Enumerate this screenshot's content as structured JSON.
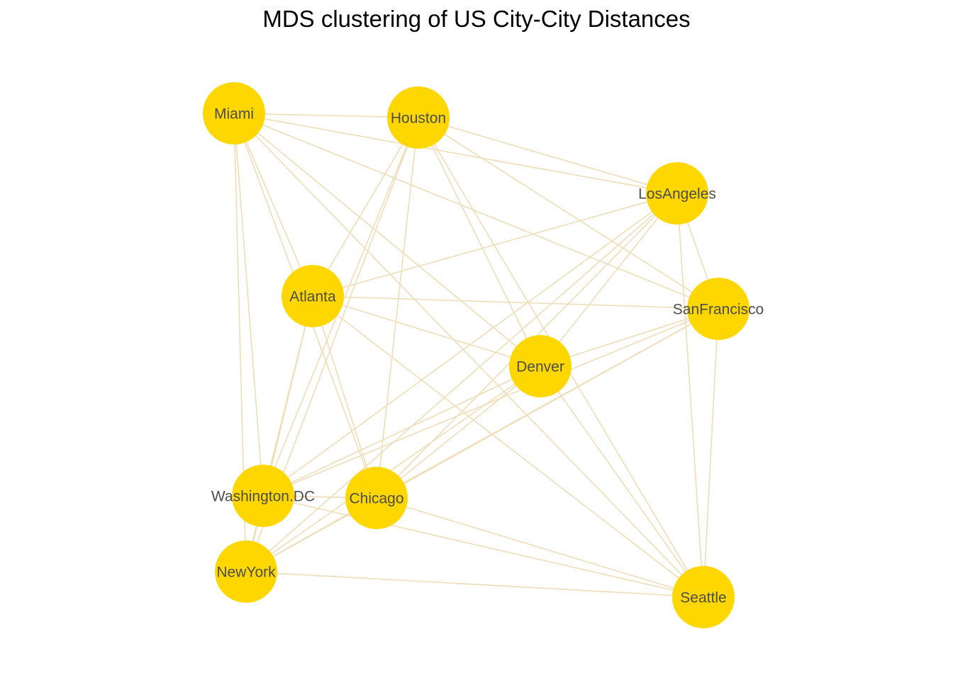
{
  "title": "MDS clustering of US City-City Distances",
  "colors": {
    "node_fill": "#FFD700",
    "edge_stroke": "#EEDDB8",
    "label_text": "#4D4D4D"
  },
  "nodes": [
    {
      "id": "Miami",
      "label": "Miami"
    },
    {
      "id": "Houston",
      "label": "Houston"
    },
    {
      "id": "LosAngeles",
      "label": "LosAngeles"
    },
    {
      "id": "Atlanta",
      "label": "Atlanta"
    },
    {
      "id": "SanFrancisco",
      "label": "SanFrancisco"
    },
    {
      "id": "Denver",
      "label": "Denver"
    },
    {
      "id": "Washington.DC",
      "label": "Washington.DC"
    },
    {
      "id": "Chicago",
      "label": "Chicago"
    },
    {
      "id": "NewYork",
      "label": "NewYork"
    },
    {
      "id": "Seattle",
      "label": "Seattle"
    }
  ],
  "edges": [
    [
      "Miami",
      "Houston"
    ],
    [
      "Miami",
      "LosAngeles"
    ],
    [
      "Miami",
      "Atlanta"
    ],
    [
      "Miami",
      "SanFrancisco"
    ],
    [
      "Miami",
      "Denver"
    ],
    [
      "Miami",
      "Washington.DC"
    ],
    [
      "Miami",
      "Chicago"
    ],
    [
      "Miami",
      "NewYork"
    ],
    [
      "Miami",
      "Seattle"
    ],
    [
      "Houston",
      "LosAngeles"
    ],
    [
      "Houston",
      "Atlanta"
    ],
    [
      "Houston",
      "SanFrancisco"
    ],
    [
      "Houston",
      "Denver"
    ],
    [
      "Houston",
      "Washington.DC"
    ],
    [
      "Houston",
      "Chicago"
    ],
    [
      "Houston",
      "NewYork"
    ],
    [
      "Houston",
      "Seattle"
    ],
    [
      "LosAngeles",
      "Atlanta"
    ],
    [
      "LosAngeles",
      "SanFrancisco"
    ],
    [
      "LosAngeles",
      "Denver"
    ],
    [
      "LosAngeles",
      "Washington.DC"
    ],
    [
      "LosAngeles",
      "Chicago"
    ],
    [
      "LosAngeles",
      "NewYork"
    ],
    [
      "LosAngeles",
      "Seattle"
    ],
    [
      "Atlanta",
      "SanFrancisco"
    ],
    [
      "Atlanta",
      "Denver"
    ],
    [
      "Atlanta",
      "Washington.DC"
    ],
    [
      "Atlanta",
      "Chicago"
    ],
    [
      "Atlanta",
      "NewYork"
    ],
    [
      "Atlanta",
      "Seattle"
    ],
    [
      "SanFrancisco",
      "Denver"
    ],
    [
      "SanFrancisco",
      "Washington.DC"
    ],
    [
      "SanFrancisco",
      "Chicago"
    ],
    [
      "SanFrancisco",
      "NewYork"
    ],
    [
      "SanFrancisco",
      "Seattle"
    ],
    [
      "Denver",
      "Washington.DC"
    ],
    [
      "Denver",
      "Chicago"
    ],
    [
      "Denver",
      "NewYork"
    ],
    [
      "Denver",
      "Seattle"
    ],
    [
      "Washington.DC",
      "Chicago"
    ],
    [
      "Washington.DC",
      "NewYork"
    ],
    [
      "Washington.DC",
      "Seattle"
    ],
    [
      "Chicago",
      "NewYork"
    ],
    [
      "Chicago",
      "Seattle"
    ],
    [
      "NewYork",
      "Seattle"
    ]
  ]
}
